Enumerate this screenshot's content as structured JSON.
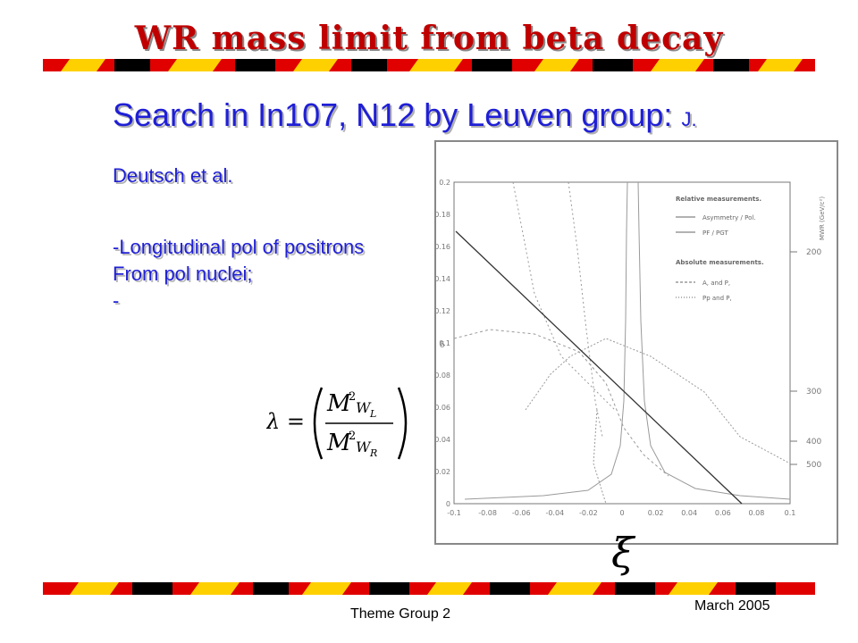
{
  "slide": {
    "title": "WR mass limit from beta decay",
    "heading_main": "Search in In107, N12  by Leuven group:",
    "heading_authors": "J. Deutsch et al.",
    "bullet_1": "-Longitudinal pol of positrons",
    "bullet_2": "From pol nuclei;",
    "bullet_3": "-",
    "formula": {
      "lhs": "λ =",
      "numerator_M": "M",
      "numerator_exp": "2",
      "numerator_sub": "W",
      "numerator_subsub": "L",
      "denominator_M": "M",
      "denominator_exp": "2",
      "denominator_sub": "W",
      "denominator_subsub": "R"
    },
    "footer_left": "Theme Group 2",
    "footer_right": "March 2005",
    "xi_symbol": "ξ",
    "colors": {
      "title": "#c00000",
      "text": "#1f1fd6",
      "band_red": "#e00000",
      "band_yellow": "#ffd000",
      "band_black": "#000000"
    }
  },
  "plot": {
    "y_ticks": [
      "0.2",
      "0.18",
      "0.16",
      "0.14",
      "0.12",
      "0.1",
      "0.08",
      "0.06",
      "0.04",
      "0.02",
      "0"
    ],
    "x_ticks": [
      "-0.1",
      "-0.08",
      "-0.06",
      "-0.04",
      "-0.02",
      "0",
      "0.02",
      "0.04",
      "0.06",
      "0.08",
      "0.1"
    ],
    "y_axis_label": "δ",
    "right_axis_label": "MWR (GeV/c²)",
    "right_ticks": [
      "200",
      "300",
      "400",
      "500"
    ],
    "legend_title_rel": "Relative measurements.",
    "legend_rel_1": "Asymmetry / Pol.",
    "legend_rel_2": "PF / PGT",
    "legend_title_abs": "Absolute measurements.",
    "legend_abs_1": "A, and P,",
    "legend_abs_2": "Pp and P,"
  }
}
